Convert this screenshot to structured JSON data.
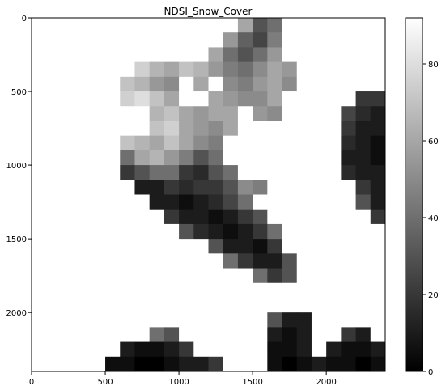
{
  "chart_data": {
    "type": "heatmap",
    "title": "NDSI_Snow_Cover",
    "colormap": "gray",
    "x_range": [
      0,
      2400
    ],
    "y_range": [
      2400,
      0
    ],
    "x_ticks": [
      0,
      500,
      1000,
      1500,
      2000
    ],
    "y_ticks": [
      0,
      500,
      1000,
      1500,
      2000
    ],
    "colorbar": {
      "range": [
        0,
        92
      ],
      "ticks": [
        0,
        20,
        40,
        60,
        80
      ]
    },
    "image_grid": {
      "rows": 24,
      "cols": 24,
      "values": [
        [
          92,
          92,
          92,
          92,
          92,
          92,
          92,
          92,
          92,
          92,
          92,
          92,
          92,
          92,
          60,
          30,
          40,
          92,
          92,
          92,
          92,
          92,
          92,
          92
        ],
        [
          92,
          92,
          92,
          92,
          92,
          92,
          92,
          92,
          92,
          92,
          92,
          92,
          92,
          55,
          35,
          25,
          45,
          92,
          92,
          92,
          92,
          92,
          92,
          92
        ],
        [
          92,
          92,
          92,
          92,
          92,
          92,
          92,
          92,
          92,
          92,
          92,
          92,
          60,
          40,
          30,
          40,
          55,
          92,
          92,
          92,
          92,
          92,
          92,
          92
        ],
        [
          92,
          92,
          92,
          92,
          92,
          92,
          92,
          75,
          65,
          60,
          70,
          65,
          55,
          45,
          40,
          50,
          60,
          55,
          92,
          92,
          92,
          92,
          92,
          92
        ],
        [
          92,
          92,
          92,
          92,
          92,
          92,
          70,
          65,
          55,
          50,
          92,
          60,
          92,
          50,
          45,
          55,
          60,
          50,
          92,
          92,
          92,
          92,
          92,
          92
        ],
        [
          92,
          92,
          92,
          92,
          92,
          92,
          75,
          80,
          70,
          60,
          92,
          92,
          60,
          55,
          50,
          50,
          60,
          92,
          92,
          92,
          92,
          92,
          20,
          20
        ],
        [
          92,
          92,
          92,
          92,
          92,
          92,
          92,
          92,
          65,
          70,
          60,
          55,
          60,
          60,
          92,
          55,
          50,
          92,
          92,
          92,
          92,
          25,
          15,
          10
        ],
        [
          92,
          92,
          92,
          92,
          92,
          92,
          92,
          92,
          70,
          75,
          60,
          55,
          50,
          60,
          92,
          92,
          92,
          92,
          92,
          92,
          92,
          20,
          10,
          10
        ],
        [
          92,
          92,
          92,
          92,
          92,
          92,
          70,
          65,
          60,
          70,
          60,
          50,
          45,
          92,
          92,
          92,
          92,
          92,
          92,
          92,
          92,
          15,
          10,
          5
        ],
        [
          92,
          92,
          92,
          92,
          92,
          92,
          40,
          60,
          65,
          55,
          45,
          30,
          40,
          92,
          92,
          92,
          92,
          92,
          92,
          92,
          92,
          10,
          10,
          5
        ],
        [
          92,
          92,
          92,
          92,
          92,
          92,
          20,
          30,
          40,
          40,
          20,
          15,
          30,
          40,
          92,
          92,
          92,
          92,
          92,
          92,
          92,
          15,
          10,
          10
        ],
        [
          92,
          92,
          92,
          92,
          92,
          92,
          92,
          10,
          10,
          20,
          15,
          20,
          20,
          30,
          50,
          45,
          92,
          92,
          92,
          92,
          92,
          92,
          20,
          10
        ],
        [
          92,
          92,
          92,
          92,
          92,
          92,
          92,
          92,
          10,
          10,
          5,
          10,
          15,
          25,
          40,
          92,
          92,
          92,
          92,
          92,
          92,
          92,
          30,
          10
        ],
        [
          92,
          92,
          92,
          92,
          92,
          92,
          92,
          92,
          92,
          20,
          10,
          10,
          5,
          10,
          20,
          30,
          92,
          92,
          92,
          92,
          92,
          92,
          92,
          20
        ],
        [
          92,
          92,
          92,
          92,
          92,
          92,
          92,
          92,
          92,
          92,
          30,
          15,
          10,
          5,
          10,
          20,
          40,
          92,
          92,
          92,
          92,
          92,
          92,
          92
        ],
        [
          92,
          92,
          92,
          92,
          92,
          92,
          92,
          92,
          92,
          92,
          92,
          92,
          30,
          10,
          10,
          5,
          20,
          92,
          92,
          92,
          92,
          92,
          92,
          92
        ],
        [
          92,
          92,
          92,
          92,
          92,
          92,
          92,
          92,
          92,
          92,
          92,
          92,
          92,
          40,
          20,
          10,
          10,
          30,
          92,
          92,
          92,
          92,
          92,
          92
        ],
        [
          92,
          92,
          92,
          92,
          92,
          92,
          92,
          92,
          92,
          92,
          92,
          92,
          92,
          92,
          92,
          40,
          20,
          30,
          92,
          92,
          92,
          92,
          92,
          92
        ],
        [
          92,
          92,
          92,
          92,
          92,
          92,
          92,
          92,
          92,
          92,
          92,
          92,
          92,
          92,
          92,
          92,
          92,
          92,
          92,
          92,
          92,
          92,
          92,
          92
        ],
        [
          92,
          92,
          92,
          92,
          92,
          92,
          92,
          92,
          92,
          92,
          92,
          92,
          92,
          92,
          92,
          92,
          92,
          92,
          92,
          92,
          92,
          92,
          92,
          92
        ],
        [
          92,
          92,
          92,
          92,
          92,
          92,
          92,
          92,
          92,
          92,
          92,
          92,
          92,
          92,
          92,
          92,
          30,
          10,
          10,
          92,
          92,
          92,
          92,
          92
        ],
        [
          92,
          92,
          92,
          92,
          92,
          92,
          92,
          92,
          40,
          30,
          92,
          92,
          92,
          92,
          92,
          92,
          10,
          5,
          10,
          92,
          92,
          20,
          10,
          92
        ],
        [
          92,
          92,
          92,
          92,
          92,
          92,
          10,
          5,
          5,
          10,
          20,
          92,
          92,
          92,
          92,
          92,
          5,
          5,
          10,
          92,
          10,
          5,
          5,
          10
        ],
        [
          92,
          92,
          92,
          92,
          92,
          5,
          5,
          0,
          0,
          5,
          10,
          10,
          20,
          92,
          92,
          92,
          5,
          0,
          5,
          10,
          5,
          5,
          0,
          5
        ]
      ]
    }
  }
}
